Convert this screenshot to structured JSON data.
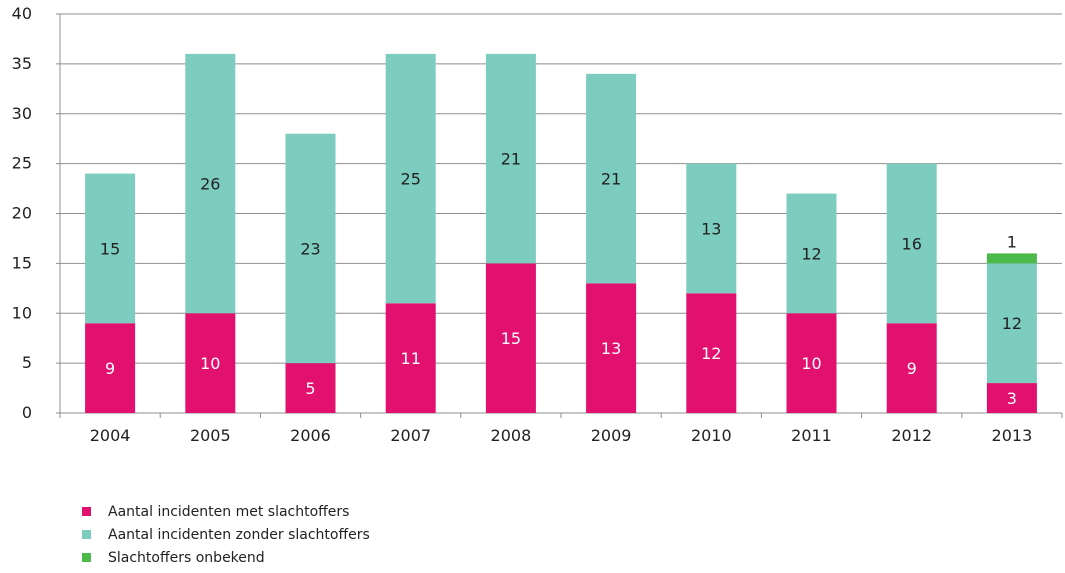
{
  "chart_data": {
    "type": "bar",
    "stacked": true,
    "categories": [
      "2004",
      "2005",
      "2006",
      "2007",
      "2008",
      "2009",
      "2010",
      "2011",
      "2012",
      "2013"
    ],
    "series": [
      {
        "name": "Aantal incidenten met slachtoffers",
        "color": "#e2106e",
        "values": [
          9,
          10,
          5,
          11,
          15,
          13,
          12,
          10,
          9,
          3
        ]
      },
      {
        "name": "Aantal incidenten zonder slachtoffers",
        "color": "#7ccdc0",
        "values": [
          15,
          26,
          23,
          25,
          21,
          21,
          13,
          12,
          16,
          12
        ]
      },
      {
        "name": "Slachtoffers onbekend",
        "color": "#4cba4a",
        "values": [
          0,
          0,
          0,
          0,
          0,
          0,
          0,
          0,
          0,
          1
        ]
      }
    ],
    "ylim": [
      0,
      40
    ],
    "yticks": [
      "0",
      "5",
      "10",
      "15",
      "20",
      "25",
      "30",
      "35",
      "40"
    ],
    "grid": true,
    "legend_position": "bottom-left",
    "data_labels": [
      [
        "9",
        "10",
        "5",
        "11",
        "15",
        "13",
        "12",
        "10",
        "9",
        "3"
      ],
      [
        "15",
        "26",
        "23",
        "25",
        "21",
        "21",
        "13",
        "12",
        "16",
        "12"
      ],
      [
        "",
        "",
        "",
        "",
        "",
        "",
        "",
        "",
        "",
        "1"
      ]
    ]
  }
}
